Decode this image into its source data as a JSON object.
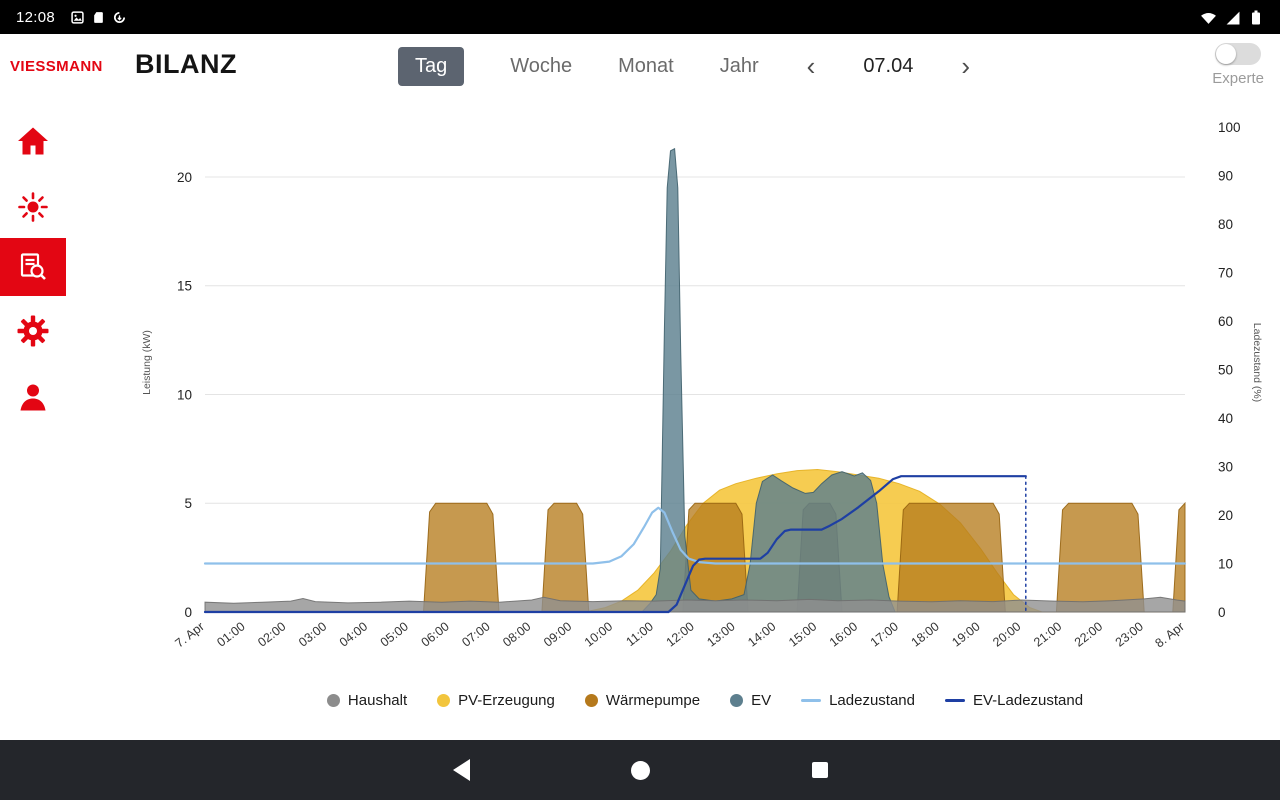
{
  "status_bar": {
    "time": "12:08"
  },
  "header": {
    "brand": "VIESSMANN",
    "title": "BILANZ",
    "tabs": [
      {
        "label": "Tag",
        "selected": true
      },
      {
        "label": "Woche",
        "selected": false
      },
      {
        "label": "Monat",
        "selected": false
      },
      {
        "label": "Jahr",
        "selected": false
      }
    ],
    "date_nav": {
      "prev": "‹",
      "date": "07.04",
      "next": "›"
    },
    "experte_label": "Experte",
    "experte_on": false
  },
  "sidebar": {
    "items": [
      {
        "id": "home",
        "selected": false
      },
      {
        "id": "energy",
        "selected": false
      },
      {
        "id": "balance-report",
        "selected": true
      },
      {
        "id": "settings",
        "selected": false
      },
      {
        "id": "profile",
        "selected": false
      }
    ]
  },
  "colors": {
    "brand_red": "#e30613",
    "tab_selected_bg": "#5c6470",
    "haushalt": "#8c8c8c",
    "pv": "#f2c53d",
    "waermepumpe": "#b5791c",
    "ev": "#5d7f8e",
    "ladezustand": "#8fc0ea",
    "ev_ladezustand": "#1e3fa3"
  },
  "chart_data": {
    "type": "area",
    "x_axis": {
      "range": [
        0,
        24
      ],
      "tick_labels": [
        "7. Apr",
        "01:00",
        "02:00",
        "03:00",
        "04:00",
        "05:00",
        "06:00",
        "07:00",
        "08:00",
        "09:00",
        "10:00",
        "11:00",
        "12:00",
        "13:00",
        "14:00",
        "15:00",
        "16:00",
        "17:00",
        "18:00",
        "19:00",
        "20:00",
        "21:00",
        "22:00",
        "23:00",
        "8. Apr"
      ]
    },
    "y_left": {
      "label": "Leistung (kW)",
      "range": [
        0,
        22.94
      ],
      "ticks": [
        0,
        5,
        10,
        15,
        20
      ]
    },
    "y_right": {
      "label": "Ladezustand (%)",
      "range": [
        0,
        102.9
      ],
      "ticks": [
        0,
        10,
        20,
        30,
        40,
        50,
        60,
        70,
        80,
        90,
        100
      ]
    },
    "series": [
      {
        "name": "PV-Erzeugung",
        "type": "area",
        "axis": "left",
        "color": "#f5c63e",
        "stroke": "#e4af1e",
        "opacity": 0.9,
        "points": [
          [
            9.3,
            0
          ],
          [
            9.8,
            0.2
          ],
          [
            10.2,
            0.5
          ],
          [
            10.6,
            1.0
          ],
          [
            11,
            1.8
          ],
          [
            11.4,
            2.8
          ],
          [
            11.8,
            4.0
          ],
          [
            12.2,
            5.0
          ],
          [
            12.6,
            5.6
          ],
          [
            13,
            5.9
          ],
          [
            13.5,
            6.15
          ],
          [
            14,
            6.35
          ],
          [
            14.5,
            6.5
          ],
          [
            15,
            6.55
          ],
          [
            15.5,
            6.45
          ],
          [
            16,
            6.3
          ],
          [
            16.5,
            6.15
          ],
          [
            17,
            5.9
          ],
          [
            17.5,
            5.55
          ],
          [
            18,
            4.95
          ],
          [
            18.5,
            4.1
          ],
          [
            19,
            2.9
          ],
          [
            19.4,
            1.8
          ],
          [
            19.8,
            0.8
          ],
          [
            20.2,
            0.2
          ],
          [
            20.5,
            0
          ]
        ]
      },
      {
        "name": "Wärmepumpe",
        "type": "area",
        "axis": "left",
        "color": "#b67c1e",
        "stroke": "#96630f",
        "opacity": 0.78,
        "points": [
          [
            5.35,
            0
          ],
          [
            5.5,
            4.6
          ],
          [
            5.65,
            5
          ],
          [
            6.9,
            5
          ],
          [
            7.05,
            4.5
          ],
          [
            7.2,
            0
          ],
          [
            8.25,
            0
          ],
          [
            8.4,
            4.7
          ],
          [
            8.55,
            5
          ],
          [
            9.1,
            5
          ],
          [
            9.25,
            4.5
          ],
          [
            9.4,
            0
          ],
          [
            11.7,
            0
          ],
          [
            11.85,
            4.7
          ],
          [
            12,
            5
          ],
          [
            13,
            5
          ],
          [
            13.15,
            4.5
          ],
          [
            13.3,
            0
          ],
          [
            14.5,
            0
          ],
          [
            14.65,
            4.7
          ],
          [
            14.8,
            5
          ],
          [
            15.3,
            5
          ],
          [
            15.45,
            4.5
          ],
          [
            15.6,
            0
          ],
          [
            16.95,
            0
          ],
          [
            17.1,
            4.7
          ],
          [
            17.25,
            5
          ],
          [
            19.3,
            5
          ],
          [
            19.45,
            4.5
          ],
          [
            19.6,
            0
          ],
          [
            20.85,
            0
          ],
          [
            21,
            4.7
          ],
          [
            21.15,
            5
          ],
          [
            22.7,
            5
          ],
          [
            22.85,
            4.5
          ],
          [
            23,
            0
          ],
          [
            23.7,
            0
          ],
          [
            23.85,
            4.7
          ],
          [
            24,
            5
          ]
        ]
      },
      {
        "name": "EV",
        "type": "area",
        "axis": "left",
        "color": "#5d808f",
        "stroke": "#3f606d",
        "opacity": 0.82,
        "points": [
          [
            10.7,
            0
          ],
          [
            10.9,
            0.4
          ],
          [
            11.05,
            0.8
          ],
          [
            11.15,
            2
          ],
          [
            11.25,
            13
          ],
          [
            11.32,
            19.5
          ],
          [
            11.4,
            21.2
          ],
          [
            11.5,
            21.3
          ],
          [
            11.58,
            19.5
          ],
          [
            11.65,
            12
          ],
          [
            11.75,
            3.5
          ],
          [
            11.9,
            1
          ],
          [
            12.1,
            0.6
          ],
          [
            12.5,
            0.5
          ],
          [
            12.9,
            0.6
          ],
          [
            13.2,
            0.8
          ],
          [
            13.35,
            2.2
          ],
          [
            13.5,
            5
          ],
          [
            13.65,
            6
          ],
          [
            13.9,
            6.3
          ],
          [
            14.1,
            6.05
          ],
          [
            14.4,
            5.7
          ],
          [
            14.7,
            5.45
          ],
          [
            14.9,
            5.5
          ],
          [
            15.1,
            5.9
          ],
          [
            15.35,
            6.3
          ],
          [
            15.6,
            6.45
          ],
          [
            15.9,
            6.25
          ],
          [
            16.1,
            6.4
          ],
          [
            16.3,
            6.05
          ],
          [
            16.45,
            5
          ],
          [
            16.6,
            2.2
          ],
          [
            16.75,
            0.7
          ],
          [
            16.9,
            0
          ]
        ]
      },
      {
        "name": "Haushalt",
        "type": "area",
        "axis": "left",
        "color": "#909090",
        "stroke": "#6f6f6f",
        "opacity": 0.8,
        "points": [
          [
            0,
            0.45
          ],
          [
            0.7,
            0.4
          ],
          [
            1.4,
            0.45
          ],
          [
            2.1,
            0.5
          ],
          [
            2.4,
            0.62
          ],
          [
            2.7,
            0.48
          ],
          [
            3.5,
            0.42
          ],
          [
            4.3,
            0.45
          ],
          [
            5,
            0.5
          ],
          [
            5.8,
            0.45
          ],
          [
            6.5,
            0.5
          ],
          [
            7.2,
            0.45
          ],
          [
            8,
            0.55
          ],
          [
            8.3,
            0.68
          ],
          [
            8.7,
            0.52
          ],
          [
            9.5,
            0.48
          ],
          [
            10.3,
            0.52
          ],
          [
            11,
            0.5
          ],
          [
            11.8,
            0.55
          ],
          [
            12.5,
            0.52
          ],
          [
            13.2,
            0.55
          ],
          [
            14,
            0.52
          ],
          [
            14.8,
            0.58
          ],
          [
            15.5,
            0.52
          ],
          [
            16.3,
            0.55
          ],
          [
            17,
            0.5
          ],
          [
            17.8,
            0.47
          ],
          [
            18.5,
            0.52
          ],
          [
            19.3,
            0.48
          ],
          [
            20,
            0.55
          ],
          [
            20.8,
            0.5
          ],
          [
            21.5,
            0.47
          ],
          [
            22.2,
            0.52
          ],
          [
            23,
            0.6
          ],
          [
            23.4,
            0.68
          ],
          [
            23.8,
            0.55
          ],
          [
            24,
            0.5
          ]
        ]
      },
      {
        "name": "Ladezustand",
        "type": "line",
        "axis": "right",
        "color": "#8fc0ea",
        "width": 2.2,
        "points": [
          [
            0,
            10
          ],
          [
            9.5,
            10
          ],
          [
            9.9,
            10.4
          ],
          [
            10.2,
            11.5
          ],
          [
            10.5,
            14
          ],
          [
            10.75,
            17.5
          ],
          [
            10.95,
            20.5
          ],
          [
            11.1,
            21.5
          ],
          [
            11.25,
            20.5
          ],
          [
            11.45,
            16.5
          ],
          [
            11.65,
            12.8
          ],
          [
            11.85,
            11
          ],
          [
            12.1,
            10.3
          ],
          [
            12.5,
            10
          ],
          [
            24,
            10
          ]
        ]
      },
      {
        "name": "EV-Ladezustand",
        "type": "line",
        "axis": "right",
        "color": "#1e3fa3",
        "width": 2.2,
        "points": [
          [
            0,
            0
          ],
          [
            11.35,
            0
          ],
          [
            11.55,
            1.5
          ],
          [
            11.75,
            5.5
          ],
          [
            11.95,
            9.5
          ],
          [
            12.1,
            10.8
          ],
          [
            12.25,
            11
          ],
          [
            13.6,
            11
          ],
          [
            13.78,
            12.2
          ],
          [
            14,
            15
          ],
          [
            14.2,
            16.7
          ],
          [
            14.35,
            17
          ],
          [
            15.1,
            17
          ],
          [
            15.3,
            17.8
          ],
          [
            15.6,
            19.2
          ],
          [
            16,
            21.6
          ],
          [
            16.5,
            24.9
          ],
          [
            16.85,
            27.4
          ],
          [
            17.05,
            28
          ],
          [
            20.1,
            28
          ]
        ]
      },
      {
        "name": "EV-Ladezustand-Ende",
        "type": "line",
        "axis": "right",
        "color": "#1e3fa3",
        "width": 1.5,
        "dash": "2,4",
        "points": [
          [
            20.1,
            28
          ],
          [
            20.1,
            0
          ]
        ]
      }
    ]
  },
  "legend": [
    {
      "label": "Haushalt",
      "color": "#8c8c8c",
      "marker": "dot"
    },
    {
      "label": "PV-Erzeugung",
      "color": "#f2c53d",
      "marker": "dot"
    },
    {
      "label": "Wärmepumpe",
      "color": "#b5791c",
      "marker": "dot"
    },
    {
      "label": "EV",
      "color": "#5d7f8e",
      "marker": "dot"
    },
    {
      "label": "Ladezustand",
      "color": "#8fc0ea",
      "marker": "line"
    },
    {
      "label": "EV-Ladezustand",
      "color": "#1e3fa3",
      "marker": "line"
    }
  ]
}
